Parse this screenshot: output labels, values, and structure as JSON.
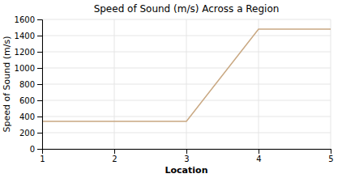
{
  "chart_data": {
    "type": "line",
    "title": "Speed of Sound (m/s) Across a Region",
    "xlabel": "Location",
    "ylabel": "Speed of Sound (m/s)",
    "x": [
      1,
      2,
      3,
      4,
      5
    ],
    "values": [
      340,
      340,
      340,
      1480,
      1480
    ],
    "color": "#c9a882",
    "xlim": [
      1,
      5
    ],
    "ylim": [
      0,
      1600
    ],
    "xticks": [
      1,
      2,
      3,
      4,
      5
    ],
    "yticks": [
      0,
      200,
      400,
      600,
      800,
      1000,
      1200,
      1400,
      1600
    ],
    "grid": true
  }
}
